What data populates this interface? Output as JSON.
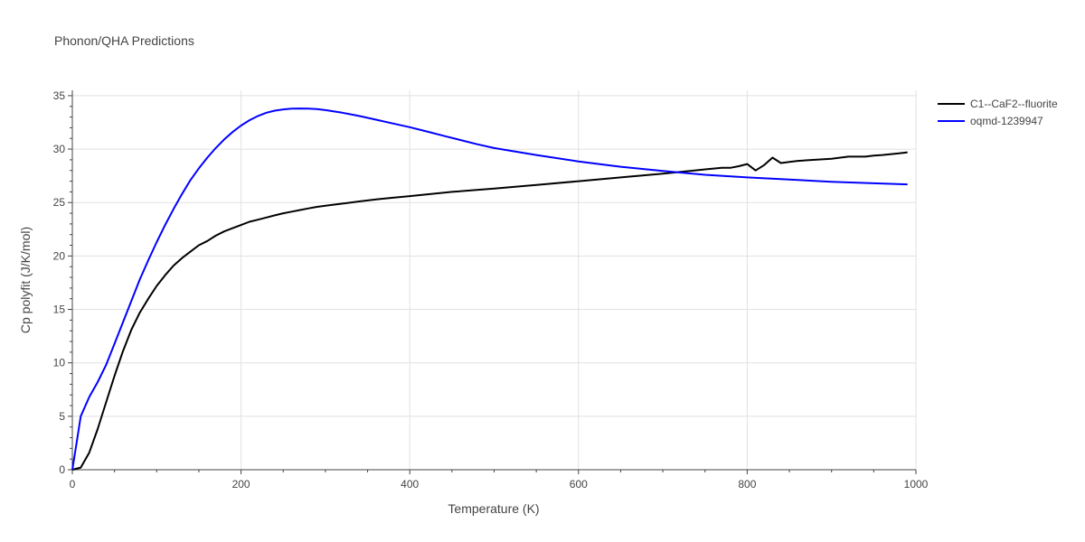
{
  "chart_data": {
    "type": "line",
    "title": "Phonon/QHA Predictions",
    "xlabel": "Temperature (K)",
    "ylabel": "Cp polyfit (J/K/mol)",
    "xlim": [
      0,
      1000
    ],
    "ylim": [
      0,
      35.5
    ],
    "x_ticks": [
      0,
      200,
      400,
      600,
      800,
      1000
    ],
    "x_tick_labels": [
      "0",
      "200",
      "400",
      "600",
      "800",
      "1000"
    ],
    "y_ticks": [
      0,
      5,
      10,
      15,
      20,
      25,
      30,
      35
    ],
    "y_tick_labels": [
      "0",
      "5",
      "10",
      "15",
      "20",
      "25",
      "30",
      "35"
    ],
    "grid": true,
    "legend_position": "top-right",
    "series": [
      {
        "name": "C1--CaF2--fluorite",
        "color": "#000000",
        "x": [
          0,
          10,
          20,
          30,
          40,
          50,
          60,
          70,
          80,
          90,
          100,
          110,
          120,
          130,
          140,
          150,
          160,
          170,
          180,
          190,
          200,
          210,
          220,
          230,
          240,
          250,
          260,
          270,
          280,
          290,
          300,
          320,
          340,
          360,
          380,
          400,
          450,
          500,
          550,
          600,
          650,
          700,
          750,
          770,
          780,
          790,
          800,
          810,
          820,
          830,
          840,
          850,
          860,
          880,
          900,
          920,
          940,
          950,
          960,
          980,
          990
        ],
        "values": [
          0,
          0.2,
          1.6,
          3.8,
          6.3,
          8.8,
          11.1,
          13.1,
          14.7,
          16.0,
          17.2,
          18.2,
          19.1,
          19.8,
          20.4,
          21.0,
          21.4,
          21.9,
          22.3,
          22.6,
          22.9,
          23.2,
          23.4,
          23.6,
          23.8,
          24.0,
          24.15,
          24.3,
          24.45,
          24.6,
          24.7,
          24.9,
          25.1,
          25.3,
          25.45,
          25.6,
          26.0,
          26.3,
          26.65,
          27.0,
          27.35,
          27.7,
          28.1,
          28.25,
          28.25,
          28.4,
          28.6,
          28.0,
          28.5,
          29.2,
          28.7,
          28.8,
          28.9,
          29.0,
          29.1,
          29.3,
          29.3,
          29.4,
          29.45,
          29.6,
          29.7
        ]
      },
      {
        "name": "oqmd-1239947",
        "color": "#0000ff",
        "x": [
          0,
          5,
          10,
          20,
          30,
          40,
          50,
          60,
          70,
          80,
          90,
          100,
          110,
          120,
          130,
          140,
          150,
          160,
          170,
          180,
          190,
          200,
          210,
          220,
          230,
          240,
          250,
          260,
          270,
          280,
          290,
          300,
          320,
          340,
          360,
          380,
          400,
          420,
          440,
          460,
          480,
          500,
          550,
          600,
          650,
          700,
          750,
          800,
          850,
          900,
          950,
          990
        ],
        "values": [
          0,
          2.5,
          5.0,
          6.8,
          8.2,
          9.8,
          11.8,
          13.8,
          15.8,
          17.8,
          19.6,
          21.3,
          22.9,
          24.4,
          25.8,
          27.1,
          28.2,
          29.2,
          30.1,
          30.9,
          31.6,
          32.2,
          32.7,
          33.1,
          33.4,
          33.6,
          33.72,
          33.78,
          33.8,
          33.79,
          33.74,
          33.65,
          33.4,
          33.1,
          32.75,
          32.4,
          32.05,
          31.65,
          31.25,
          30.85,
          30.45,
          30.1,
          29.45,
          28.85,
          28.35,
          27.95,
          27.6,
          27.35,
          27.15,
          26.95,
          26.8,
          26.7
        ]
      }
    ]
  }
}
